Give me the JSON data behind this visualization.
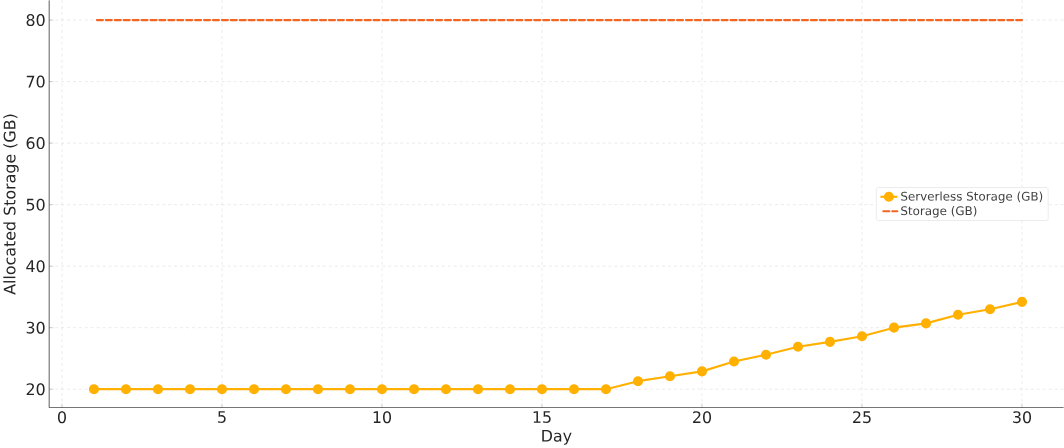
{
  "chart_data": {
    "type": "line",
    "xlabel": "Day",
    "ylabel": "Allocated Storage (GB)",
    "x": [
      1,
      2,
      3,
      4,
      5,
      6,
      7,
      8,
      9,
      10,
      11,
      12,
      13,
      14,
      15,
      16,
      17,
      18,
      19,
      20,
      21,
      22,
      23,
      24,
      25,
      26,
      27,
      28,
      29,
      30
    ],
    "series": [
      {
        "name": "Serverless Storage (GB)",
        "color": "#ffb000",
        "marker": "circle",
        "line_style": "solid",
        "values": [
          20,
          20,
          20,
          20,
          20,
          20,
          20,
          20,
          20,
          20,
          20,
          20,
          20,
          20,
          20,
          20,
          20,
          21.3,
          22.1,
          22.9,
          24.5,
          25.6,
          26.9,
          27.7,
          28.6,
          30.0,
          30.7,
          32.1,
          33.0,
          34.2
        ]
      },
      {
        "name": "Storage (GB)",
        "color": "#f26522",
        "marker": "none",
        "line_style": "dashed",
        "values": [
          80,
          80,
          80,
          80,
          80,
          80,
          80,
          80,
          80,
          80,
          80,
          80,
          80,
          80,
          80,
          80,
          80,
          80,
          80,
          80,
          80,
          80,
          80,
          80,
          80,
          80,
          80,
          80,
          80,
          80
        ]
      }
    ],
    "xlim": [
      -0.4,
      31.3
    ],
    "ylim": [
      17,
      83.2
    ],
    "xticks": [
      0,
      5,
      10,
      15,
      20,
      25,
      30
    ],
    "yticks": [
      20,
      30,
      40,
      50,
      60,
      70,
      80
    ],
    "grid": true,
    "legend": "right"
  }
}
